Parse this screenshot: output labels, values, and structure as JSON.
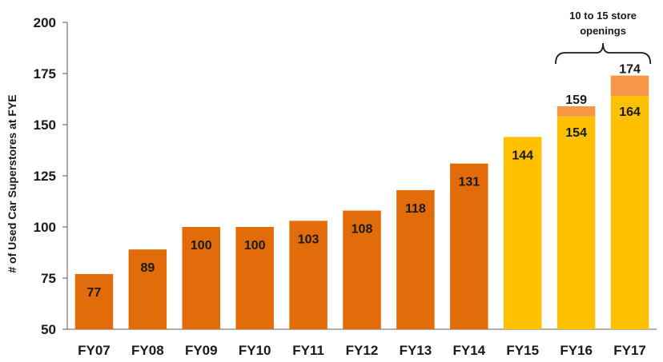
{
  "chart_data": {
    "type": "bar",
    "title": "",
    "xlabel": "",
    "ylabel": "# of Used Car Superstores at FYE",
    "ylim": [
      50,
      200
    ],
    "yticks": [
      50,
      75,
      100,
      125,
      150,
      175,
      200
    ],
    "grid": false,
    "categories": [
      "FY07",
      "FY08",
      "FY09",
      "FY10",
      "FY11",
      "FY12",
      "FY13",
      "FY14",
      "FY15",
      "FY16",
      "FY17"
    ],
    "bars": [
      {
        "category": "FY07",
        "value": 77,
        "label": "77",
        "color": "#E36C0A"
      },
      {
        "category": "FY08",
        "value": 89,
        "label": "89",
        "color": "#E36C0A"
      },
      {
        "category": "FY09",
        "value": 100,
        "label": "100",
        "color": "#E36C0A"
      },
      {
        "category": "FY10",
        "value": 100,
        "label": "100",
        "color": "#E36C0A"
      },
      {
        "category": "FY11",
        "value": 103,
        "label": "103",
        "color": "#E36C0A"
      },
      {
        "category": "FY12",
        "value": 108,
        "label": "108",
        "color": "#E36C0A"
      },
      {
        "category": "FY13",
        "value": 118,
        "label": "118",
        "color": "#E36C0A"
      },
      {
        "category": "FY14",
        "value": 131,
        "label": "131",
        "color": "#E36C0A"
      },
      {
        "category": "FY15",
        "value": 144,
        "label": "144",
        "color": "#FFC000"
      },
      {
        "category": "FY16",
        "value": 154,
        "label": "154",
        "color": "#FFC000",
        "upper_value": 159,
        "upper_label": "159",
        "upper_color": "#F79646"
      },
      {
        "category": "FY17",
        "value": 164,
        "label": "164",
        "color": "#FFC000",
        "upper_value": 174,
        "upper_label": "174",
        "upper_color": "#F79646"
      }
    ],
    "annotation": {
      "lines": [
        "10 to 15 store",
        "openings"
      ],
      "spans": [
        "FY16",
        "FY17"
      ]
    }
  }
}
